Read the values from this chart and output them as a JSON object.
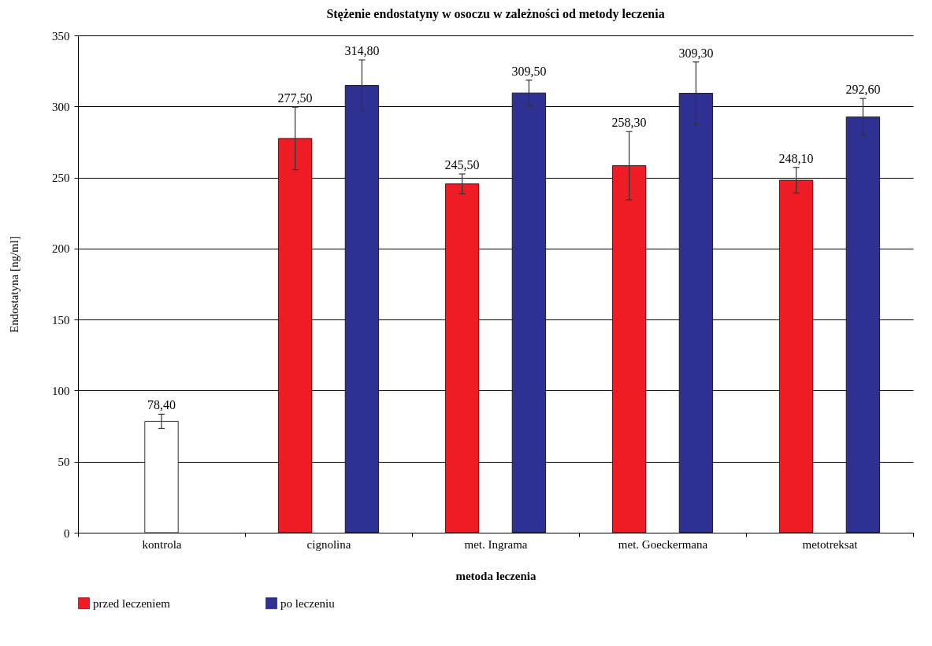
{
  "chart_data": {
    "type": "bar",
    "title": "Stężenie endostatyny w osoczu w zależności od metody leczenia",
    "xlabel": "metoda leczenia",
    "ylabel": "Endostatyna [ng/ml]",
    "categories": [
      "kontrola",
      "cignolina",
      "met. Ingrama",
      "met. Goeckermana",
      "metotreksat"
    ],
    "series": [
      {
        "name": "przed leczeniem",
        "color": "#ee1c25",
        "values": [
          null,
          277.5,
          245.5,
          258.3,
          248.1
        ],
        "errors": [
          null,
          22,
          7,
          24,
          9
        ],
        "value_labels": [
          null,
          "277,50",
          "245,50",
          "258,30",
          "248,10"
        ]
      },
      {
        "color": "#ffffff",
        "values": [
          78.4,
          null,
          null,
          null,
          null
        ],
        "errors": [
          5,
          null,
          null,
          null,
          null
        ],
        "value_labels": [
          "78,40",
          null,
          null,
          null,
          null
        ]
      },
      {
        "name": "po leczeniu",
        "color": "#2e3192",
        "values": [
          null,
          314.8,
          309.5,
          309.3,
          292.6
        ],
        "errors": [
          null,
          18,
          9,
          22,
          13
        ],
        "value_labels": [
          null,
          "314,80",
          "309,50",
          "309,30",
          "292,60"
        ]
      }
    ],
    "ylim": [
      0,
      350
    ],
    "yticks": [
      0,
      50,
      100,
      150,
      200,
      250,
      300,
      350
    ],
    "grid": "y",
    "legend": "bottom"
  }
}
